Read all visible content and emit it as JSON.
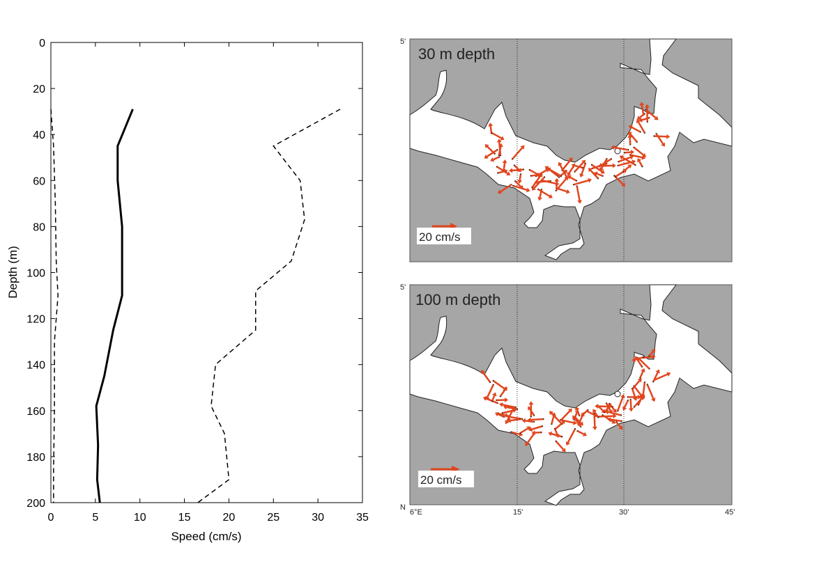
{
  "chart_data": [
    {
      "type": "line",
      "xlabel": "Speed (cm/s)",
      "ylabel": "Depth (m)",
      "xlim": [
        0,
        35
      ],
      "ylim": [
        0,
        200
      ],
      "y_inverted": true,
      "xticks": [
        "0",
        "5",
        "10",
        "15",
        "20",
        "25",
        "30",
        "35"
      ],
      "yticks": [
        "0",
        "20",
        "40",
        "60",
        "80",
        "100",
        "120",
        "140",
        "160",
        "180",
        "200"
      ],
      "grid": false,
      "series": [
        {
          "style": "solid-thick",
          "color": "#000000",
          "points": [
            [
              9.2,
              29
            ],
            [
              7.5,
              45
            ],
            [
              7.5,
              60
            ],
            [
              8,
              80
            ],
            [
              8,
              110
            ],
            [
              7,
              125
            ],
            [
              6,
              145
            ],
            [
              5.1,
              158
            ],
            [
              5.3,
              175
            ],
            [
              5.2,
              190
            ],
            [
              5.5,
              200
            ]
          ]
        },
        {
          "style": "dashed",
          "color": "#000000",
          "points": [
            [
              32.5,
              29
            ],
            [
              25,
              45
            ],
            [
              28,
              60
            ],
            [
              28.5,
              77
            ],
            [
              27,
              95
            ],
            [
              23,
              108
            ],
            [
              23,
              125
            ],
            [
              18.5,
              140
            ],
            [
              18,
              158
            ],
            [
              19.5,
              170
            ],
            [
              20,
              190
            ],
            [
              16.5,
              200
            ]
          ]
        },
        {
          "style": "dashed",
          "color": "#000000",
          "points": [
            [
              0,
              29
            ],
            [
              0.3,
              45
            ],
            [
              0.5,
              70
            ],
            [
              0.6,
              95
            ],
            [
              0.8,
              110
            ],
            [
              0.4,
              130
            ],
            [
              0.4,
              160
            ],
            [
              0.3,
              185
            ],
            [
              0.3,
              200
            ]
          ]
        }
      ]
    },
    {
      "type": "vector-map",
      "label": "30 m depth",
      "scale_label": "20 cm/s",
      "lon_ticks": [
        "15'",
        "30'"
      ],
      "lat_ticks": [
        "5'"
      ],
      "land_color": "#a6a6a6",
      "water_color": "#ffffff",
      "arrow_color": "#e0461e"
    },
    {
      "type": "vector-map",
      "label": "100 m depth",
      "scale_label": "20 cm/s",
      "lon_ticks": [
        "6°E",
        "15'",
        "30'",
        "45'"
      ],
      "lat_ticks": [
        "5'",
        "N"
      ],
      "land_color": "#a6a6a6",
      "water_color": "#ffffff",
      "arrow_color": "#e0461e"
    }
  ]
}
